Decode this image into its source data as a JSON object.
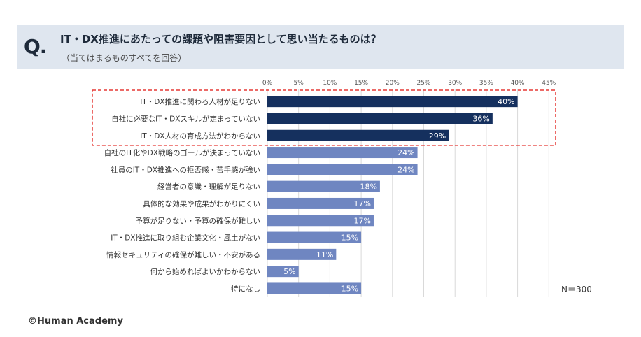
{
  "header": {
    "q_mark": "Q.",
    "question": "IT・DX推進にあたっての課題や阻害要因として思い当たるものは？",
    "note": "（当てはまるものすべてを回答）"
  },
  "sample": "N＝300",
  "copyright": "©Human Academy",
  "colors": {
    "highlight_bar": "#15305e",
    "normal_bar": "#6f86c1",
    "highlight_box": "#e53935",
    "header_bg": "#dfe6ef"
  },
  "chart_data": {
    "type": "bar",
    "orientation": "horizontal",
    "xlim": [
      0,
      45
    ],
    "ticks": [
      "0%",
      "5%",
      "10%",
      "15%",
      "20%",
      "25%",
      "30%",
      "35%",
      "40%",
      "45%"
    ],
    "tick_values": [
      0,
      5,
      10,
      15,
      20,
      25,
      30,
      35,
      40,
      45
    ],
    "grid": true,
    "categories": [
      "IT・DX推進に関わる人材が足りない",
      "自社に必要なIT・DXスキルが定まっていない",
      "IT・DX人材の育成方法がわからない",
      "自社のIT化やDX戦略のゴールが決まっていない",
      "社員のIT・DX推進への拒否感・苦手感が強い",
      "経営者の意識・理解が足りない",
      "具体的な効果や成果がわかりにくい",
      "予算が足りない・予算の確保が難しい",
      "IT・DX推進に取り組む企業文化・風土がない",
      "情報セキュリティの確保が難しい・不安がある",
      "何から始めればよいかわからない",
      "特になし"
    ],
    "values": [
      40,
      36,
      29,
      24,
      24,
      18,
      17,
      17,
      15,
      11,
      5,
      15
    ],
    "value_labels": [
      "40%",
      "36%",
      "29%",
      "24%",
      "24%",
      "18%",
      "17%",
      "17%",
      "15%",
      "11%",
      "5%",
      "15%"
    ],
    "highlighted": [
      0,
      1,
      2
    ]
  }
}
